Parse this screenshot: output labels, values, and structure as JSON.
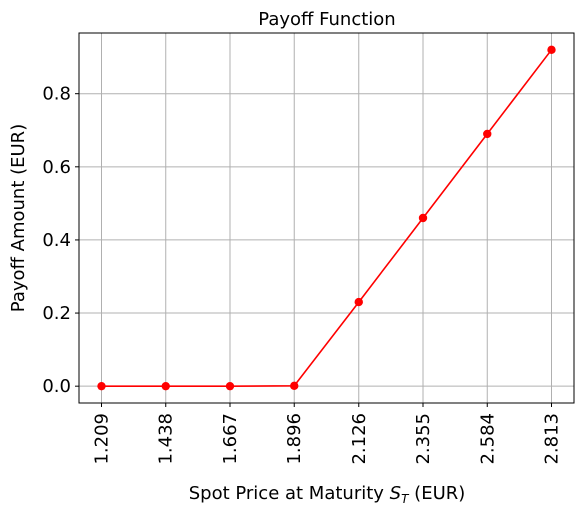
{
  "chart_data": {
    "type": "line",
    "title": "Payoff Function",
    "xlabel_main": "Spot Price at Maturity ",
    "xlabel_symbol": "S",
    "xlabel_subscript": "T",
    "xlabel_suffix": " (EUR)",
    "ylabel": "Payoff Amount (EUR)",
    "categories": [
      "1.209",
      "1.438",
      "1.667",
      "1.896",
      "2.126",
      "2.355",
      "2.584",
      "2.813"
    ],
    "x": [
      1.209,
      1.438,
      1.667,
      1.896,
      2.126,
      2.355,
      2.584,
      2.813
    ],
    "series": [
      {
        "values": [
          0.0,
          0.0,
          0.0,
          0.001,
          0.23,
          0.46,
          0.69,
          0.92
        ],
        "color": "#ff0000",
        "marker": "circle"
      }
    ],
    "yticks": [
      "0.0",
      "0.2",
      "0.4",
      "0.6",
      "0.8"
    ],
    "ytick_values": [
      0.0,
      0.2,
      0.4,
      0.6,
      0.8
    ],
    "xlim": [
      1.1288,
      2.8932
    ],
    "ylim": [
      -0.046,
      0.966
    ],
    "grid": true,
    "legend": "none"
  }
}
